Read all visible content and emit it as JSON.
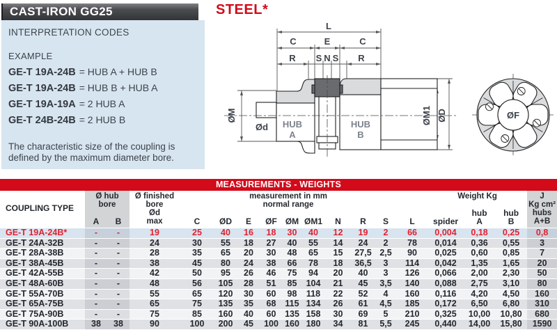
{
  "left_panel": {
    "title": "CAST-IRON GG25",
    "subtitle": "INTERPRETATION CODES",
    "example_label": "EXAMPLE",
    "codes": [
      {
        "code": "GE-T 19A-24B",
        "meaning": "= HUB A + HUB B"
      },
      {
        "code": "GE-T 19A-24B",
        "meaning": "= HUB B + HUB A"
      },
      {
        "code": "GE-T 19A-19A",
        "meaning": "= 2 HUB A"
      },
      {
        "code": "GE-T 24B-24B",
        "meaning": "= 2 HUB B"
      }
    ],
    "note": "The characteristic size of the coupling is\ndefined by the maximum diameter bore."
  },
  "drawing": {
    "material_label": "STEEL*",
    "labels": {
      "L": "L",
      "C": "C",
      "E": "E",
      "R": "R",
      "S": "S",
      "N": "N",
      "om": "ØM",
      "od_shaft": "Ød",
      "om1": "ØM1",
      "od": "ØD",
      "of": "ØF",
      "hub_word": "HUB",
      "hub_a_letter": "A",
      "hub_b_letter": "B"
    }
  },
  "table": {
    "title": "MEASUREMENTS - WEIGHTS",
    "col_keys": [
      "type",
      "a",
      "b",
      "dmax",
      "c",
      "od",
      "e",
      "of",
      "om",
      "om1",
      "n",
      "r",
      "s",
      "l",
      "spider",
      "hub_a",
      "hub_b",
      "j"
    ],
    "headers": {
      "coupling_type": "COUPLING TYPE",
      "hub_bore": "Ø hub\nbore",
      "finished_bore": "Ø finished\nbore\nØd\nmax",
      "measurement": "measurement in mm\nnormal range",
      "weight": "Weight Kg",
      "j": "J\nKg cm²\nhubs\nA+B",
      "a": "A",
      "b": "B",
      "c": "C",
      "od": "ØD",
      "e": "E",
      "of": "ØF",
      "om": "ØM",
      "om1": "ØM1",
      "n": "N",
      "r": "R",
      "s": "S",
      "l": "L",
      "spider": "spider",
      "hub_a": "hub\nA",
      "hub_b": "hub\nB"
    },
    "rows": [
      {
        "type": "GE-T 19A-24B*",
        "a": "-",
        "b": "-",
        "dmax": "19",
        "c": "25",
        "od": "40",
        "e": "16",
        "of": "18",
        "om": "30",
        "om1": "40",
        "n": "12",
        "r": "19",
        "s": "2",
        "l": "66",
        "spider": "0,004",
        "hub_a": "0,18",
        "hub_b": "0,25",
        "j": "0,8"
      },
      {
        "type": "GE-T 24A-32B",
        "a": "-",
        "b": "-",
        "dmax": "24",
        "c": "30",
        "od": "55",
        "e": "18",
        "of": "27",
        "om": "40",
        "om1": "55",
        "n": "14",
        "r": "24",
        "s": "2",
        "l": "78",
        "spider": "0,014",
        "hub_a": "0,36",
        "hub_b": "0,55",
        "j": "3"
      },
      {
        "type": "GE-T 28A-38B",
        "a": "-",
        "b": "-",
        "dmax": "28",
        "c": "35",
        "od": "65",
        "e": "20",
        "of": "30",
        "om": "48",
        "om1": "65",
        "n": "15",
        "r": "27,5",
        "s": "2,5",
        "l": "90",
        "spider": "0,025",
        "hub_a": "0,60",
        "hub_b": "0,85",
        "j": "7"
      },
      {
        "type": "GE-T 38A-45B",
        "a": "-",
        "b": "-",
        "dmax": "38",
        "c": "45",
        "od": "80",
        "e": "24",
        "of": "38",
        "om": "66",
        "om1": "78",
        "n": "18",
        "r": "36,5",
        "s": "3",
        "l": "114",
        "spider": "0,042",
        "hub_a": "1,35",
        "hub_b": "1,65",
        "j": "20"
      },
      {
        "type": "GE-T 42A-55B",
        "a": "-",
        "b": "-",
        "dmax": "42",
        "c": "50",
        "od": "95",
        "e": "26",
        "of": "46",
        "om": "75",
        "om1": "94",
        "n": "20",
        "r": "40",
        "s": "3",
        "l": "126",
        "spider": "0,066",
        "hub_a": "2,00",
        "hub_b": "2,30",
        "j": "50"
      },
      {
        "type": "GE-T 48A-60B",
        "a": "-",
        "b": "-",
        "dmax": "48",
        "c": "56",
        "od": "105",
        "e": "28",
        "of": "51",
        "om": "85",
        "om1": "104",
        "n": "21",
        "r": "45",
        "s": "3,5",
        "l": "140",
        "spider": "0,088",
        "hub_a": "2,75",
        "hub_b": "3,10",
        "j": "80"
      },
      {
        "type": "GE-T 55A-70B",
        "a": "-",
        "b": "-",
        "dmax": "55",
        "c": "65",
        "od": "120",
        "e": "30",
        "of": "60",
        "om": "98",
        "om1": "118",
        "n": "22",
        "r": "52",
        "s": "4",
        "l": "160",
        "spider": "0,116",
        "hub_a": "4,20",
        "hub_b": "4,50",
        "j": "160"
      },
      {
        "type": "GE-T 65A-75B",
        "a": "-",
        "b": "-",
        "dmax": "65",
        "c": "75",
        "od": "135",
        "e": "35",
        "of": "68",
        "om": "115",
        "om1": "134",
        "n": "26",
        "r": "61",
        "s": "4,5",
        "l": "185",
        "spider": "0,172",
        "hub_a": "6,50",
        "hub_b": "6,80",
        "j": "310"
      },
      {
        "type": "GE-T 75A-90B",
        "a": "-",
        "b": "-",
        "dmax": "75",
        "c": "85",
        "od": "160",
        "e": "40",
        "of": "60",
        "om": "135",
        "om1": "158",
        "n": "30",
        "r": "69",
        "s": "5",
        "l": "210",
        "spider": "0,325",
        "hub_a": "10,00",
        "hub_b": "10,80",
        "j": "680"
      },
      {
        "type": "GE-T 90A-100B",
        "a": "38",
        "b": "38",
        "dmax": "90",
        "c": "100",
        "od": "200",
        "e": "45",
        "of": "100",
        "om": "160",
        "om1": "180",
        "n": "34",
        "r": "81",
        "s": "5,5",
        "l": "245",
        "spider": "0,440",
        "hub_a": "14,00",
        "hub_b": "15,80",
        "j": "1590"
      }
    ]
  },
  "colors": {
    "accent_red": "#d20a1a",
    "row_red_text": "#de2231",
    "panel_blue": "#d7e5f0",
    "gray_column": "#d2d4d6",
    "row_highlight": "#d8e4ef"
  }
}
